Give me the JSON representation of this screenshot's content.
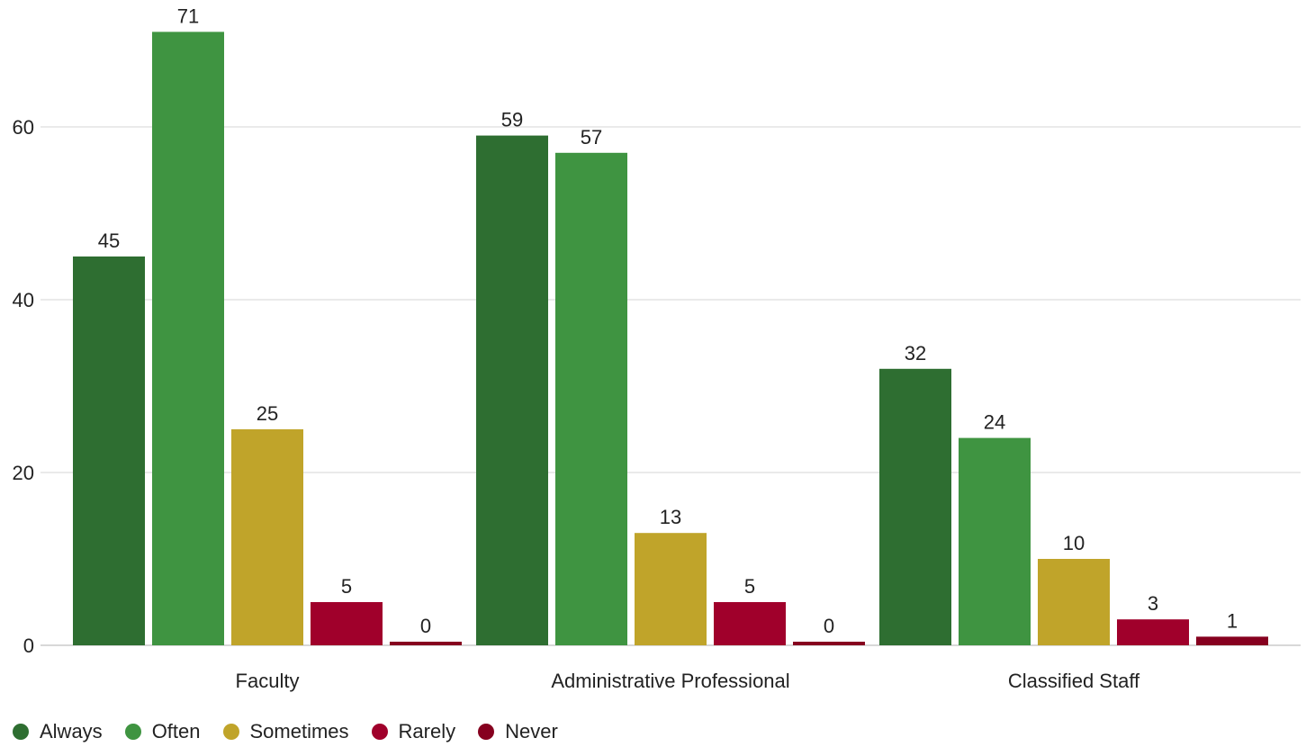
{
  "chart_data": {
    "type": "bar",
    "categories": [
      "Faculty",
      "Administrative Professional",
      "Classified Staff"
    ],
    "series": [
      {
        "name": "Always",
        "color": "#2e6e31",
        "values": [
          45,
          59,
          32
        ]
      },
      {
        "name": "Often",
        "color": "#3f9441",
        "values": [
          71,
          57,
          24
        ]
      },
      {
        "name": "Sometimes",
        "color": "#c0a42a",
        "values": [
          25,
          13,
          10
        ]
      },
      {
        "name": "Rarely",
        "color": "#a0002b",
        "values": [
          5,
          5,
          3
        ]
      },
      {
        "name": "Never",
        "color": "#86001f",
        "values": [
          0,
          0,
          1
        ]
      }
    ],
    "y_ticks": [
      0,
      20,
      40,
      60
    ],
    "ylim": [
      0,
      72
    ],
    "grid": true,
    "legend_position": "bottom-left",
    "data_labels": true
  }
}
